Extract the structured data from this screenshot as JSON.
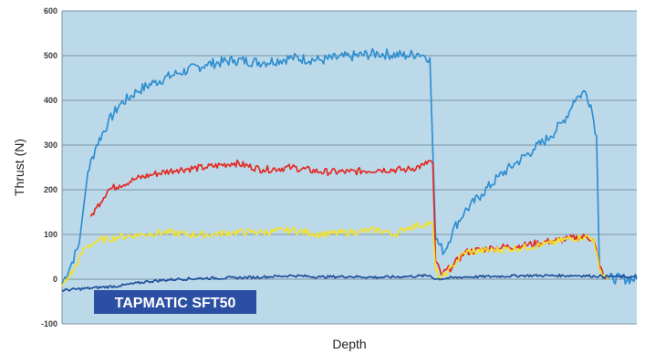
{
  "chart_data": {
    "type": "line",
    "title": "",
    "xlabel": "Depth",
    "ylabel": "Thrust (N)",
    "annotation": "TAPMATIC SFT50",
    "x_range": [
      0,
      100
    ],
    "ylim": [
      -100,
      600
    ],
    "y_ticks": [
      "600",
      "500",
      "400",
      "300",
      "200",
      "100",
      "0",
      "-100"
    ],
    "y_tick_values": [
      600,
      500,
      400,
      300,
      200,
      100,
      0,
      -100
    ],
    "grid": "horizontal",
    "x_tick_labels": false,
    "plot_background": "#bcd9ea",
    "series": [
      {
        "color": "#2f8fd0",
        "x": [
          0,
          1.5,
          3,
          4.5,
          6,
          8,
          10,
          13,
          16,
          20,
          25,
          30,
          35,
          40,
          45,
          50,
          55,
          60,
          62,
          63,
          64,
          65,
          66.5,
          68,
          70,
          73,
          76,
          79,
          82,
          85,
          87,
          88.5,
          89,
          90,
          91,
          92,
          93,
          93.5,
          95,
          100
        ],
        "y": [
          -10,
          30,
          80,
          240,
          300,
          350,
          390,
          420,
          440,
          460,
          480,
          490,
          485,
          495,
          490,
          498,
          505,
          500,
          505,
          500,
          495,
          90,
          60,
          110,
          150,
          190,
          230,
          260,
          290,
          320,
          350,
          380,
          400,
          410,
          420,
          390,
          320,
          20,
          2,
          0
        ]
      },
      {
        "color": "#e32a22",
        "x": [
          5,
          6,
          8,
          10,
          13,
          16,
          20,
          25,
          30,
          35,
          40,
          45,
          50,
          55,
          60,
          63,
          64,
          64.5,
          65,
          66,
          68,
          70,
          75,
          80,
          85,
          88,
          91,
          92.5,
          93.5,
          94.5,
          95
        ],
        "y": [
          140,
          160,
          200,
          210,
          225,
          235,
          245,
          250,
          260,
          245,
          250,
          240,
          240,
          245,
          245,
          255,
          265,
          260,
          40,
          10,
          30,
          60,
          70,
          75,
          85,
          90,
          95,
          90,
          30,
          2,
          0
        ]
      },
      {
        "color": "#f2e12c",
        "x": [
          0,
          2,
          4,
          6,
          8,
          10,
          14,
          18,
          22,
          26,
          30,
          35,
          40,
          45,
          50,
          55,
          58,
          60,
          62,
          64,
          64.5,
          65,
          66,
          68,
          70,
          75,
          80,
          85,
          88,
          91,
          92.5,
          93.5,
          95
        ],
        "y": [
          -15,
          20,
          70,
          85,
          90,
          95,
          100,
          105,
          100,
          100,
          105,
          105,
          110,
          100,
          105,
          110,
          100,
          115,
          120,
          125,
          120,
          20,
          0,
          30,
          60,
          65,
          70,
          80,
          90,
          95,
          90,
          20,
          0
        ]
      },
      {
        "color": "#1f4f9c",
        "x": [
          0,
          5,
          10,
          15,
          20,
          25,
          30,
          35,
          40,
          45,
          50,
          55,
          60,
          64,
          65,
          70,
          75,
          80,
          85,
          90,
          95,
          100
        ],
        "y": [
          -25,
          -20,
          -15,
          -5,
          0,
          2,
          3,
          5,
          8,
          5,
          6,
          4,
          6,
          8,
          0,
          5,
          6,
          8,
          8,
          8,
          6,
          5
        ]
      }
    ]
  }
}
